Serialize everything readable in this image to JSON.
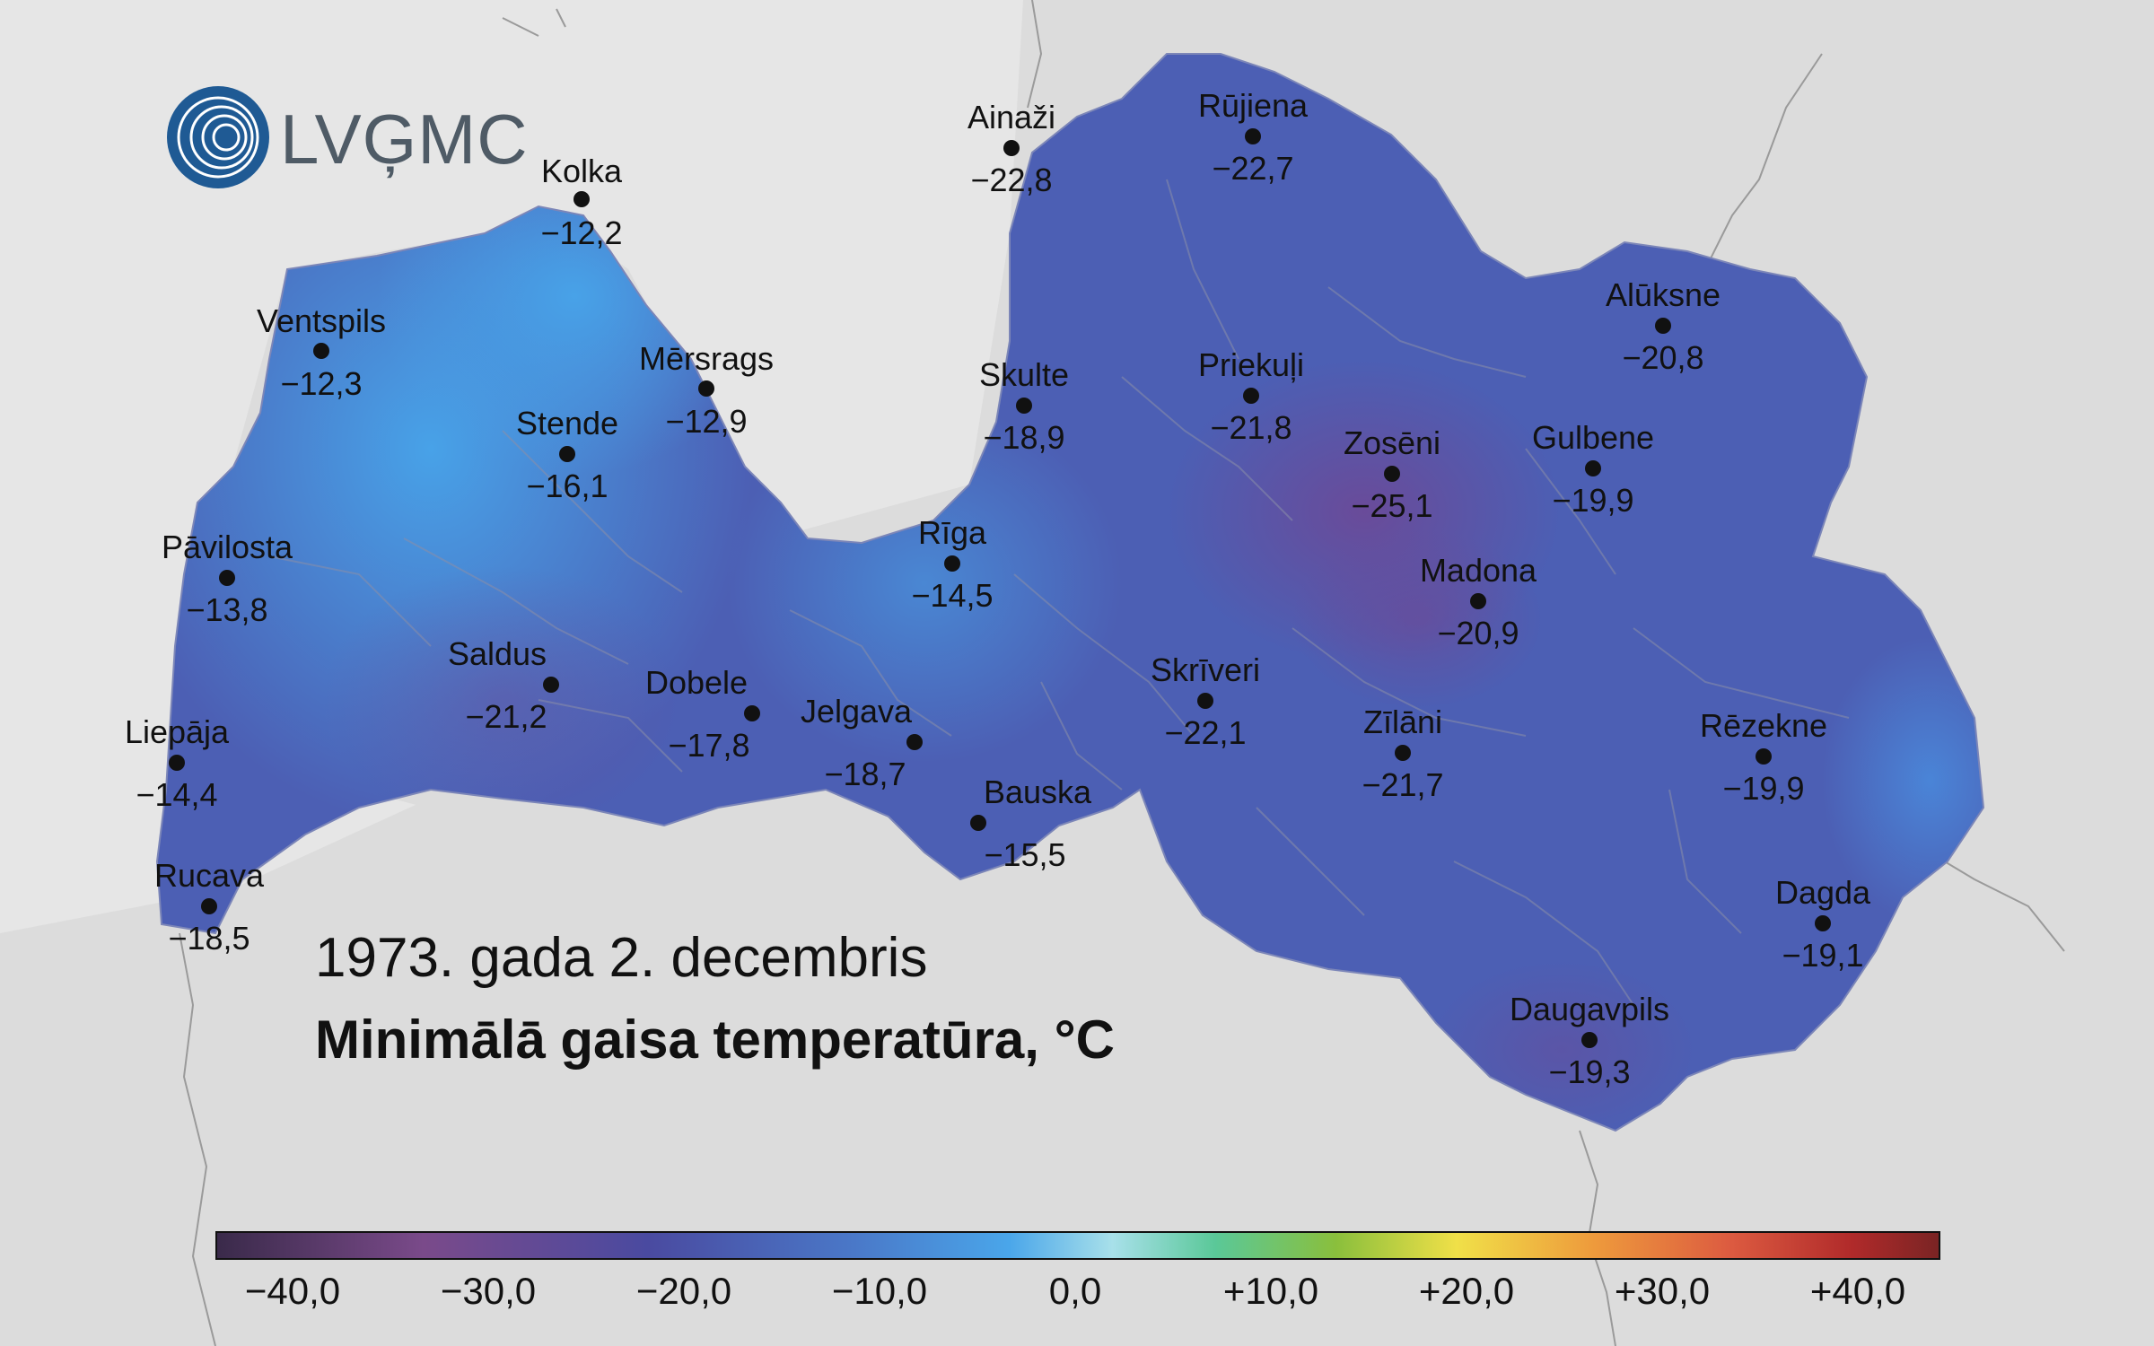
{
  "logo": {
    "text": "LVĢMC"
  },
  "title": {
    "date": "1973. gada 2. decembris",
    "main": "Minimālā gaisa temperatūra, °C"
  },
  "stations": [
    {
      "name": "Kolka",
      "value": "−12,2"
    },
    {
      "name": "Ainaži",
      "value": "−22,8"
    },
    {
      "name": "Rūjiena",
      "value": "−22,7"
    },
    {
      "name": "Ventspils",
      "value": "−12,3"
    },
    {
      "name": "Mērsrags",
      "value": "−12,9"
    },
    {
      "name": "Skulte",
      "value": "−18,9"
    },
    {
      "name": "Priekuļi",
      "value": "−21,8"
    },
    {
      "name": "Alūksne",
      "value": "−20,8"
    },
    {
      "name": "Stende",
      "value": "−16,1"
    },
    {
      "name": "Zosēni",
      "value": "−25,1"
    },
    {
      "name": "Gulbene",
      "value": "−19,9"
    },
    {
      "name": "Pāvilosta",
      "value": "−13,8"
    },
    {
      "name": "Rīga",
      "value": "−14,5"
    },
    {
      "name": "Madona",
      "value": "−20,9"
    },
    {
      "name": "Saldus",
      "value": "−21,2"
    },
    {
      "name": "Dobele",
      "value": "−17,8"
    },
    {
      "name": "Skrīveri",
      "value": "−22,1"
    },
    {
      "name": "Jelgava",
      "value": "−18,7"
    },
    {
      "name": "Zīlāni",
      "value": "−21,7"
    },
    {
      "name": "Rēzekne",
      "value": "−19,9"
    },
    {
      "name": "Liepāja",
      "value": "−14,4"
    },
    {
      "name": "Bauska",
      "value": "−15,5"
    },
    {
      "name": "Rucava",
      "value": "−18,5"
    },
    {
      "name": "Dagda",
      "value": "−19,1"
    },
    {
      "name": "Daugavpils",
      "value": "−19,3"
    }
  ],
  "colorbar": {
    "ticks": [
      "−40,0",
      "−30,0",
      "−20,0",
      "−10,0",
      "0,0",
      "+10,0",
      "+20,0",
      "+30,0",
      "+40,0"
    ]
  },
  "colors": {
    "sea": "#e6e6e6",
    "land_outside": "#dcdcdc",
    "land_cold": "#4a55a8",
    "land_mild": "#4aa0e6",
    "land_coldest": "#6a4a96"
  }
}
